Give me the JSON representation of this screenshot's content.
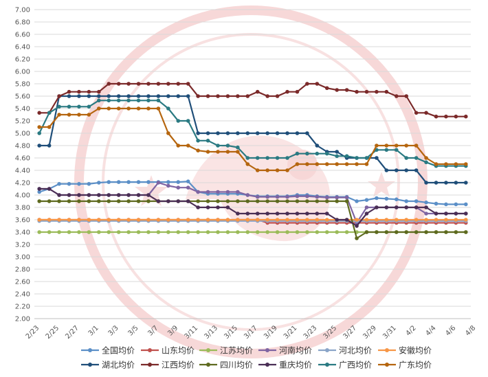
{
  "chart_data": {
    "type": "line",
    "title": "",
    "xlabel": "",
    "ylabel": "",
    "ylim": [
      2.0,
      7.0
    ],
    "ytick_step": 0.2,
    "grid": "horizontal",
    "legend_position": "bottom",
    "x_tick_labels": [
      "2/23",
      "2/25",
      "2/27",
      "3/1",
      "3/3",
      "3/5",
      "3/7",
      "3/9",
      "3/11",
      "3/13",
      "3/15",
      "3/17",
      "3/19",
      "3/21",
      "3/23",
      "3/25",
      "3/27",
      "3/29",
      "3/31",
      "4/2",
      "4/4",
      "4/6",
      "4/8"
    ],
    "x": [
      "2/23",
      "2/24",
      "2/25",
      "2/26",
      "2/27",
      "2/28",
      "3/1",
      "3/2",
      "3/3",
      "3/4",
      "3/5",
      "3/6",
      "3/7",
      "3/8",
      "3/9",
      "3/10",
      "3/11",
      "3/12",
      "3/13",
      "3/14",
      "3/15",
      "3/16",
      "3/17",
      "3/18",
      "3/19",
      "3/20",
      "3/21",
      "3/22",
      "3/23",
      "3/24",
      "3/25",
      "3/26",
      "3/27",
      "3/28",
      "3/29",
      "3/30",
      "3/31",
      "4/1",
      "4/2",
      "4/3",
      "4/4",
      "4/5",
      "4/6",
      "4/7"
    ],
    "series": [
      {
        "name": "全国均价",
        "color": "#5b8fc7",
        "values": [
          4.05,
          4.1,
          4.18,
          4.18,
          4.18,
          4.18,
          4.2,
          4.21,
          4.21,
          4.21,
          4.21,
          4.21,
          4.21,
          4.21,
          4.21,
          4.22,
          4.05,
          4.02,
          4.02,
          4.02,
          4.02,
          4.0,
          3.98,
          3.98,
          3.98,
          3.98,
          4.0,
          4.0,
          3.98,
          3.97,
          3.97,
          3.97,
          3.9,
          3.92,
          3.95,
          3.94,
          3.93,
          3.9,
          3.9,
          3.88,
          3.86,
          3.85,
          3.85,
          3.85
        ]
      },
      {
        "name": "山东均价",
        "color": "#c0504d",
        "values": [
          3.6,
          3.6,
          3.6,
          3.6,
          3.6,
          3.6,
          3.6,
          3.6,
          3.6,
          3.6,
          3.6,
          3.6,
          3.6,
          3.6,
          3.6,
          3.6,
          3.6,
          3.6,
          3.6,
          3.6,
          3.6,
          3.6,
          3.6,
          3.55,
          3.55,
          3.55,
          3.55,
          3.55,
          3.55,
          3.55,
          3.55,
          3.55,
          3.55,
          3.55,
          3.55,
          3.55,
          3.55,
          3.55,
          3.55,
          3.55,
          3.55,
          3.55,
          3.55,
          3.55
        ]
      },
      {
        "name": "江苏均价",
        "color": "#9bbb59",
        "values": [
          3.4,
          3.4,
          3.4,
          3.4,
          3.4,
          3.4,
          3.4,
          3.4,
          3.4,
          3.4,
          3.4,
          3.4,
          3.4,
          3.4,
          3.4,
          3.4,
          3.4,
          3.4,
          3.4,
          3.4,
          3.4,
          3.4,
          3.4,
          3.4,
          3.4,
          3.4,
          3.4,
          3.4,
          3.4,
          3.4,
          3.4,
          3.4,
          3.4,
          3.4,
          3.4,
          3.4,
          3.4,
          3.4,
          3.4,
          3.4,
          3.4,
          3.4,
          3.4,
          3.4
        ]
      },
      {
        "name": "河南均价",
        "color": "#7e64a2",
        "values": [
          4.1,
          4.1,
          4.0,
          4.0,
          4.0,
          4.0,
          4.0,
          4.0,
          4.0,
          4.0,
          4.0,
          4.0,
          4.2,
          4.15,
          4.12,
          4.12,
          4.05,
          4.05,
          4.05,
          4.05,
          4.05,
          4.0,
          3.97,
          3.97,
          3.97,
          3.97,
          3.98,
          3.98,
          3.97,
          3.96,
          3.96,
          3.96,
          3.55,
          3.8,
          3.8,
          3.8,
          3.8,
          3.8,
          3.8,
          3.7,
          3.7,
          3.7,
          3.7,
          3.7
        ]
      },
      {
        "name": "河北均价",
        "color": "#8aa4c8",
        "values": [
          3.58,
          3.58,
          3.58,
          3.58,
          3.58,
          3.58,
          3.58,
          3.58,
          3.58,
          3.58,
          3.58,
          3.58,
          3.58,
          3.58,
          3.58,
          3.58,
          3.58,
          3.58,
          3.58,
          3.58,
          3.58,
          3.58,
          3.58,
          3.58,
          3.58,
          3.58,
          3.58,
          3.58,
          3.58,
          3.58,
          3.58,
          3.58,
          3.58,
          3.58,
          3.58,
          3.58,
          3.58,
          3.58,
          3.58,
          3.58,
          3.58,
          3.58,
          3.58,
          3.58
        ]
      },
      {
        "name": "安徽均价",
        "color": "#f79646",
        "values": [
          3.6,
          3.6,
          3.6,
          3.6,
          3.6,
          3.6,
          3.6,
          3.6,
          3.6,
          3.6,
          3.6,
          3.6,
          3.6,
          3.6,
          3.6,
          3.6,
          3.6,
          3.6,
          3.6,
          3.6,
          3.6,
          3.6,
          3.6,
          3.6,
          3.6,
          3.6,
          3.6,
          3.6,
          3.6,
          3.6,
          3.6,
          3.6,
          3.6,
          3.6,
          3.6,
          3.6,
          3.6,
          3.6,
          3.6,
          3.6,
          3.6,
          3.6,
          3.6,
          3.6
        ]
      },
      {
        "name": "湖北均价",
        "color": "#1f4e79",
        "values": [
          4.8,
          4.8,
          5.6,
          5.6,
          5.6,
          5.6,
          5.6,
          5.6,
          5.6,
          5.6,
          5.6,
          5.6,
          5.6,
          5.6,
          5.6,
          5.6,
          5.0,
          5.0,
          5.0,
          5.0,
          5.0,
          5.0,
          5.0,
          5.0,
          5.0,
          5.0,
          5.0,
          5.0,
          4.8,
          4.7,
          4.7,
          4.6,
          4.6,
          4.6,
          4.6,
          4.4,
          4.4,
          4.4,
          4.4,
          4.2,
          4.2,
          4.2,
          4.2,
          4.2
        ]
      },
      {
        "name": "江西均价",
        "color": "#7b2a2a",
        "values": [
          5.33,
          5.33,
          5.6,
          5.67,
          5.67,
          5.67,
          5.67,
          5.8,
          5.8,
          5.8,
          5.8,
          5.8,
          5.8,
          5.8,
          5.8,
          5.8,
          5.6,
          5.6,
          5.6,
          5.6,
          5.6,
          5.6,
          5.67,
          5.6,
          5.6,
          5.67,
          5.67,
          5.8,
          5.8,
          5.73,
          5.7,
          5.7,
          5.67,
          5.67,
          5.67,
          5.67,
          5.6,
          5.6,
          5.33,
          5.33,
          5.27,
          5.27,
          5.27,
          5.27
        ]
      },
      {
        "name": "四川均价",
        "color": "#5e6a1f",
        "values": [
          3.9,
          3.9,
          3.9,
          3.9,
          3.9,
          3.9,
          3.9,
          3.9,
          3.9,
          3.9,
          3.9,
          3.9,
          3.9,
          3.9,
          3.9,
          3.9,
          3.9,
          3.9,
          3.9,
          3.9,
          3.9,
          3.9,
          3.9,
          3.9,
          3.9,
          3.9,
          3.9,
          3.9,
          3.9,
          3.9,
          3.9,
          3.9,
          3.3,
          3.4,
          3.4,
          3.4,
          3.4,
          3.4,
          3.4,
          3.4,
          3.4,
          3.4,
          3.4,
          3.4
        ]
      },
      {
        "name": "重庆均价",
        "color": "#4a2e55",
        "values": [
          4.1,
          4.1,
          4.0,
          4.0,
          4.0,
          4.0,
          4.0,
          4.0,
          4.0,
          4.0,
          4.0,
          4.0,
          3.9,
          3.9,
          3.9,
          3.9,
          3.8,
          3.8,
          3.8,
          3.8,
          3.7,
          3.7,
          3.7,
          3.7,
          3.7,
          3.7,
          3.7,
          3.7,
          3.7,
          3.7,
          3.6,
          3.6,
          3.5,
          3.7,
          3.8,
          3.8,
          3.8,
          3.8,
          3.8,
          3.8,
          3.7,
          3.7,
          3.7,
          3.7
        ]
      },
      {
        "name": "广西均价",
        "color": "#2a7a82",
        "values": [
          5.0,
          5.33,
          5.43,
          5.43,
          5.43,
          5.43,
          5.53,
          5.53,
          5.53,
          5.53,
          5.53,
          5.53,
          5.53,
          5.4,
          5.2,
          5.2,
          4.88,
          4.88,
          4.8,
          4.8,
          4.77,
          4.6,
          4.6,
          4.6,
          4.6,
          4.6,
          4.67,
          4.67,
          4.67,
          4.67,
          4.63,
          4.63,
          4.6,
          4.6,
          4.73,
          4.73,
          4.73,
          4.6,
          4.6,
          4.53,
          4.47,
          4.47,
          4.47,
          4.47
        ]
      },
      {
        "name": "广东均价",
        "color": "#b5650e",
        "values": [
          5.1,
          5.1,
          5.3,
          5.3,
          5.3,
          5.3,
          5.4,
          5.4,
          5.4,
          5.4,
          5.4,
          5.4,
          5.4,
          5.0,
          4.8,
          4.8,
          4.72,
          4.7,
          4.7,
          4.7,
          4.7,
          4.5,
          4.4,
          4.4,
          4.4,
          4.4,
          4.5,
          4.5,
          4.5,
          4.5,
          4.5,
          4.5,
          4.5,
          4.5,
          4.8,
          4.8,
          4.8,
          4.8,
          4.8,
          4.6,
          4.5,
          4.5,
          4.5,
          4.5
        ]
      }
    ]
  }
}
